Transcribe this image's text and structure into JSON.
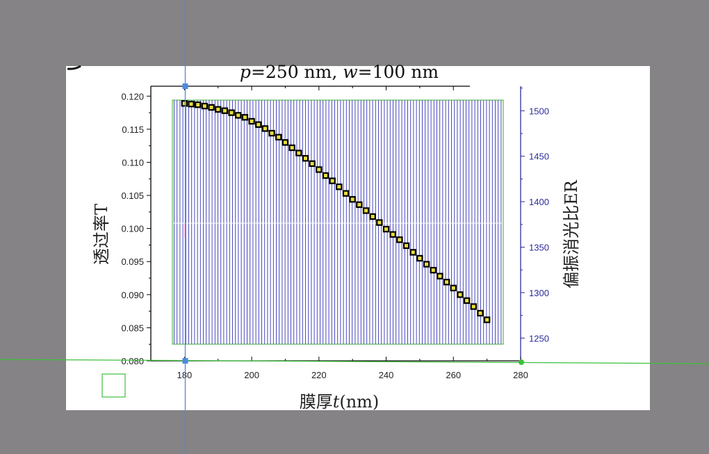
{
  "colors": {
    "background": "#858385",
    "paper": "#ffffff",
    "axis": "#000000",
    "right_axis": "#2b2b9a",
    "hatch": "#3535b8",
    "box_outline": "#3aa73a",
    "guide_blue": "#4a8be0",
    "guide_green": "#3cc03c",
    "marker_fill": "#e8dc3a",
    "marker_edge": "#000000"
  },
  "chart_data": {
    "type": "scatter",
    "title_parts": [
      "p",
      "=250 nm, ",
      "w",
      "=100 nm"
    ],
    "xlabel_parts": [
      "膜厚",
      "t",
      "(nm)"
    ],
    "ylabel": "透过率T",
    "y2label": "偏振消光比ER",
    "xlim": [
      170,
      280
    ],
    "ylim": [
      0.08,
      0.1215
    ],
    "y2lim": [
      1225,
      1527
    ],
    "xticks": [
      "180",
      "200",
      "220",
      "240",
      "260",
      "280"
    ],
    "yticks": [
      "0.080",
      "0.085",
      "0.090",
      "0.095",
      "0.100",
      "0.105",
      "0.110",
      "0.115",
      "0.120"
    ],
    "y2ticks": [
      "1250",
      "1300",
      "1350",
      "1400",
      "1450",
      "1500"
    ],
    "grid": false,
    "series": [
      {
        "marker": "square",
        "x": [
          180,
          182,
          184,
          186,
          188,
          190,
          192,
          194,
          196,
          198,
          200,
          202,
          204,
          206,
          208,
          210,
          212,
          214,
          216,
          218,
          220,
          222,
          224,
          226,
          228,
          230,
          232,
          234,
          236,
          238,
          240,
          242,
          244,
          246,
          248,
          250,
          252,
          254,
          256,
          258,
          260,
          262,
          264,
          266,
          268,
          270
        ],
        "y": [
          0.1189,
          0.1188,
          0.1187,
          0.1185,
          0.1183,
          0.118,
          0.1178,
          0.1175,
          0.1171,
          0.1168,
          0.1162,
          0.1157,
          0.1151,
          0.1144,
          0.1138,
          0.113,
          0.1122,
          0.1114,
          0.1106,
          0.1098,
          0.1089,
          0.108,
          0.1072,
          0.1063,
          0.1053,
          0.1044,
          0.1036,
          0.1027,
          0.1018,
          0.1009,
          0.0999,
          0.0991,
          0.0983,
          0.0974,
          0.0964,
          0.0955,
          0.0946,
          0.0937,
          0.0928,
          0.0919,
          0.091,
          0.09,
          0.0891,
          0.0882,
          0.0872,
          0.0862
        ]
      }
    ]
  }
}
